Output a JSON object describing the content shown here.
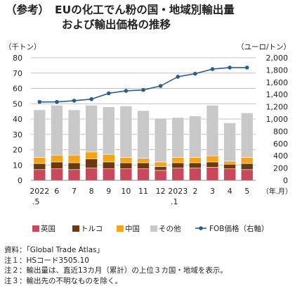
{
  "title": {
    "prefix": "（参考）",
    "line1": "EUの化工でん粉の国・地域別輸出量",
    "line2": "および輸出価格の推移"
  },
  "notes": [
    "資料：「Global Trade Atlas」",
    "注１：HSコード3505.10",
    "注２：輸出量は、直近13カ月（累計）の上位３カ国・地域を表示。",
    "注３：輸出先の不明なものを除く。"
  ],
  "colors": {
    "uk": "#c9485b",
    "turkey": "#6b3a10",
    "china": "#f5a31a",
    "other": "#c8c8c8",
    "fob": "#2e5c8a",
    "grid": "#c0c0c0"
  },
  "chart_data": {
    "type": "bar",
    "stacked": true,
    "categories": [
      "2022\n.5",
      "6",
      "7",
      "8",
      "9",
      "10",
      "11",
      "12",
      "2023\n.1",
      "2",
      "3",
      "4",
      "5"
    ],
    "x_unit": "（年.月）",
    "y_left": {
      "label": "（千トン）",
      "range": [
        0,
        80
      ],
      "ticks": [
        0,
        10,
        20,
        30,
        40,
        50,
        60,
        70,
        80
      ]
    },
    "y_right": {
      "label": "（ユーロ/トン）",
      "range": [
        0,
        2000
      ],
      "ticks": [
        0,
        200,
        400,
        600,
        800,
        1000,
        1200,
        1400,
        1600,
        1800,
        2000
      ],
      "tick_labels": [
        "0",
        "200",
        "400",
        "600",
        "800",
        "1,000",
        "1,200",
        "1,400",
        "1,600",
        "1,800",
        "2,000"
      ]
    },
    "series": [
      {
        "name": "英国",
        "key": "uk",
        "values": [
          7,
          7.5,
          7,
          8,
          7.5,
          7.5,
          7.5,
          6.5,
          8,
          8,
          8.5,
          7.5,
          7
        ]
      },
      {
        "name": "トルコ",
        "key": "turkey",
        "values": [
          4,
          4.5,
          4.5,
          6,
          4.5,
          4,
          4,
          2.5,
          3.5,
          3.5,
          3.5,
          3,
          4
        ]
      },
      {
        "name": "中国",
        "key": "china",
        "values": [
          4,
          4.5,
          5,
          4.5,
          5,
          3.5,
          3,
          3,
          3.5,
          3.5,
          4,
          2,
          4
        ]
      },
      {
        "name": "その他",
        "key": "other",
        "values": [
          31,
          32.5,
          29.5,
          30.5,
          31,
          33.5,
          31,
          28.5,
          26,
          27,
          33,
          25,
          29
        ]
      }
    ],
    "line_series": {
      "name": "FOB価格（右軸）",
      "key": "fob",
      "axis": "right",
      "values": [
        1280,
        1280,
        1300,
        1325,
        1420,
        1460,
        1475,
        1540,
        1690,
        1740,
        1815,
        1840,
        1840
      ]
    },
    "legend": {
      "position": "bottom"
    }
  }
}
